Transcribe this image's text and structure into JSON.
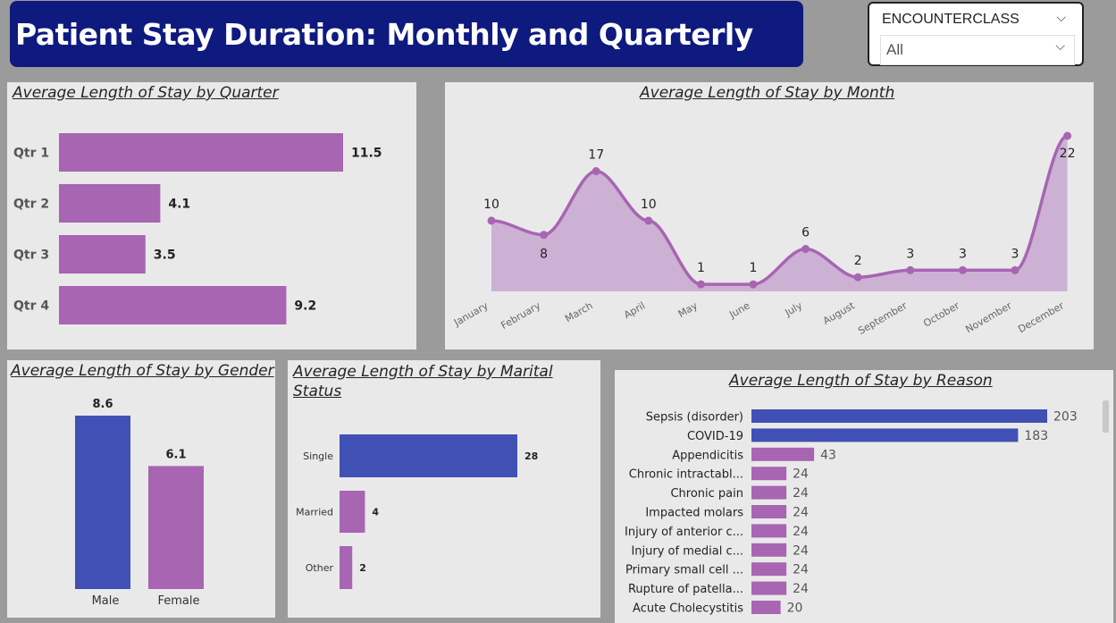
{
  "header": {
    "title": "Patient Stay Duration: Monthly and Quarterly"
  },
  "slicer": {
    "label": "ENCOUNTERCLASS",
    "value": "All"
  },
  "colors": {
    "purple": "#a765b2",
    "blue": "#4150b5",
    "title_bg": "#0e1a7e",
    "area_fill": "#ccb1d4"
  },
  "chart_data": [
    {
      "id": "quarter",
      "type": "bar",
      "orientation": "horizontal",
      "title": "Average Length of Stay by Quarter",
      "categories": [
        "Qtr 1",
        "Qtr 2",
        "Qtr 3",
        "Qtr 4"
      ],
      "values": [
        11.5,
        4.1,
        3.5,
        9.2
      ],
      "labels": [
        "11.5",
        "4.1",
        "3.5",
        "9.2"
      ]
    },
    {
      "id": "month",
      "type": "area",
      "title": "Average Length of Stay by Month",
      "categories": [
        "January",
        "February",
        "March",
        "April",
        "May",
        "June",
        "July",
        "August",
        "September",
        "October",
        "November",
        "December"
      ],
      "values": [
        10,
        8,
        17,
        10,
        1,
        1,
        6,
        2,
        3,
        3,
        3,
        22
      ],
      "ylim": [
        0,
        23
      ]
    },
    {
      "id": "gender",
      "type": "bar",
      "title": "Average Length of Stay by Gender",
      "categories": [
        "Male",
        "Female"
      ],
      "values": [
        8.6,
        6.1
      ],
      "labels": [
        "8.6",
        "6.1"
      ]
    },
    {
      "id": "marital",
      "type": "bar",
      "orientation": "horizontal",
      "title": "Average Length of Stay by Marital Status",
      "categories": [
        "Single",
        "Married",
        "Other"
      ],
      "values": [
        28,
        4,
        2
      ],
      "labels": [
        "28",
        "4",
        "2"
      ]
    },
    {
      "id": "reason",
      "type": "bar",
      "orientation": "horizontal",
      "title": "Average Length of Stay by Reason",
      "categories": [
        "Sepsis (disorder)",
        "COVID-19",
        "Appendicitis",
        "Chronic intractabl...",
        "Chronic pain",
        "Impacted molars",
        "Injury of anterior c...",
        "Injury of medial c...",
        "Primary small cell ...",
        "Rupture of patella...",
        "Acute Cholecystitis"
      ],
      "values": [
        203,
        183,
        43,
        24,
        24,
        24,
        24,
        24,
        24,
        24,
        20
      ],
      "labels": [
        "203",
        "183",
        "43",
        "24",
        "24",
        "24",
        "24",
        "24",
        "24",
        "24",
        "20"
      ]
    }
  ]
}
